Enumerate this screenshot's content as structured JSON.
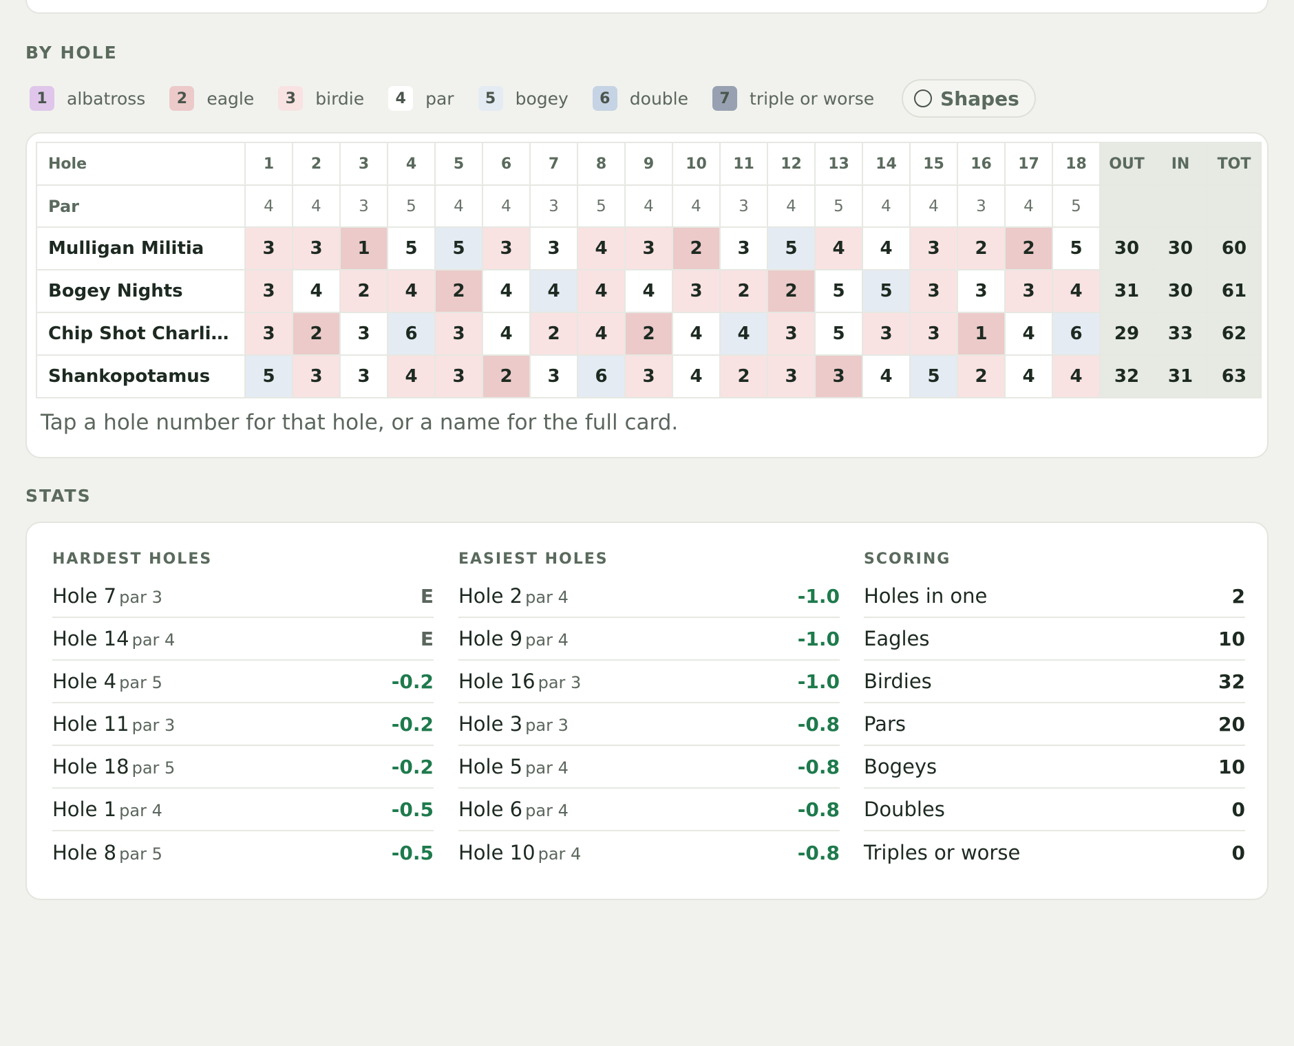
{
  "colors": {
    "albatross": "#dfc6ea",
    "eagle": "#eccaca",
    "birdie": "#f9e2e2",
    "par": "#ffffff",
    "bogey": "#e4ebf3",
    "double": "#c5d3e4",
    "triple": "#98a1b2",
    "totals": "#e7eae3",
    "negative": "#1e7a4c"
  },
  "by_hole": {
    "title": "BY HOLE",
    "legend": [
      {
        "num": "1",
        "label": "albatross",
        "cls": "c-alb"
      },
      {
        "num": "2",
        "label": "eagle",
        "cls": "c-eag"
      },
      {
        "num": "3",
        "label": "birdie",
        "cls": "c-bir"
      },
      {
        "num": "4",
        "label": "par",
        "cls": "c-par"
      },
      {
        "num": "5",
        "label": "bogey",
        "cls": "c-bog"
      },
      {
        "num": "6",
        "label": "double",
        "cls": "c-dbl"
      },
      {
        "num": "7",
        "label": "triple or worse",
        "cls": "c-tri"
      }
    ],
    "shapes_label": "Shapes",
    "hole_header": "Hole",
    "par_header": "Par",
    "holes": [
      "1",
      "2",
      "3",
      "4",
      "5",
      "6",
      "7",
      "8",
      "9",
      "10",
      "11",
      "12",
      "13",
      "14",
      "15",
      "16",
      "17",
      "18"
    ],
    "totals_headers": [
      "OUT",
      "IN",
      "TOT"
    ],
    "pars": [
      "4",
      "4",
      "3",
      "5",
      "4",
      "4",
      "3",
      "5",
      "4",
      "4",
      "3",
      "4",
      "5",
      "4",
      "4",
      "3",
      "4",
      "5"
    ],
    "teams": [
      {
        "name": "Mulligan Militia",
        "scores": [
          "3",
          "3",
          "1",
          "5",
          "5",
          "3",
          "3",
          "4",
          "3",
          "2",
          "3",
          "5",
          "4",
          "4",
          "3",
          "2",
          "2",
          "5"
        ],
        "totals": [
          "30",
          "30",
          "60"
        ]
      },
      {
        "name": "Bogey Nights",
        "scores": [
          "3",
          "4",
          "2",
          "4",
          "2",
          "4",
          "4",
          "4",
          "4",
          "3",
          "2",
          "2",
          "5",
          "5",
          "3",
          "3",
          "3",
          "4"
        ],
        "totals": [
          "31",
          "30",
          "61"
        ]
      },
      {
        "name": "Chip Shot Charli…",
        "scores": [
          "3",
          "2",
          "3",
          "6",
          "3",
          "4",
          "2",
          "4",
          "2",
          "4",
          "4",
          "3",
          "5",
          "3",
          "3",
          "1",
          "4",
          "6"
        ],
        "totals": [
          "29",
          "33",
          "62"
        ]
      },
      {
        "name": "Shankopotamus",
        "scores": [
          "5",
          "3",
          "3",
          "4",
          "3",
          "2",
          "3",
          "6",
          "3",
          "4",
          "2",
          "3",
          "3",
          "4",
          "5",
          "2",
          "4",
          "4"
        ],
        "totals": [
          "32",
          "31",
          "63"
        ]
      }
    ],
    "hint": "Tap a hole number for that hole, or a name for the full card."
  },
  "stats": {
    "title": "STATS",
    "hardest": {
      "title": "HARDEST HOLES",
      "rows": [
        {
          "name": "Hole 7",
          "par": "par 3",
          "value": "E"
        },
        {
          "name": "Hole 14",
          "par": "par 4",
          "value": "E"
        },
        {
          "name": "Hole 4",
          "par": "par 5",
          "value": "-0.2"
        },
        {
          "name": "Hole 11",
          "par": "par 3",
          "value": "-0.2"
        },
        {
          "name": "Hole 18",
          "par": "par 5",
          "value": "-0.2"
        },
        {
          "name": "Hole 1",
          "par": "par 4",
          "value": "-0.5"
        },
        {
          "name": "Hole 8",
          "par": "par 5",
          "value": "-0.5"
        }
      ]
    },
    "easiest": {
      "title": "EASIEST HOLES",
      "rows": [
        {
          "name": "Hole 2",
          "par": "par 4",
          "value": "-1.0"
        },
        {
          "name": "Hole 9",
          "par": "par 4",
          "value": "-1.0"
        },
        {
          "name": "Hole 16",
          "par": "par 3",
          "value": "-1.0"
        },
        {
          "name": "Hole 3",
          "par": "par 3",
          "value": "-0.8"
        },
        {
          "name": "Hole 5",
          "par": "par 4",
          "value": "-0.8"
        },
        {
          "name": "Hole 6",
          "par": "par 4",
          "value": "-0.8"
        },
        {
          "name": "Hole 10",
          "par": "par 4",
          "value": "-0.8"
        }
      ]
    },
    "scoring": {
      "title": "SCORING",
      "rows": [
        {
          "name": "Holes in one",
          "value": "2"
        },
        {
          "name": "Eagles",
          "value": "10"
        },
        {
          "name": "Birdies",
          "value": "32"
        },
        {
          "name": "Pars",
          "value": "20"
        },
        {
          "name": "Bogeys",
          "value": "10"
        },
        {
          "name": "Doubles",
          "value": "0"
        },
        {
          "name": "Triples or worse",
          "value": "0"
        }
      ]
    }
  }
}
